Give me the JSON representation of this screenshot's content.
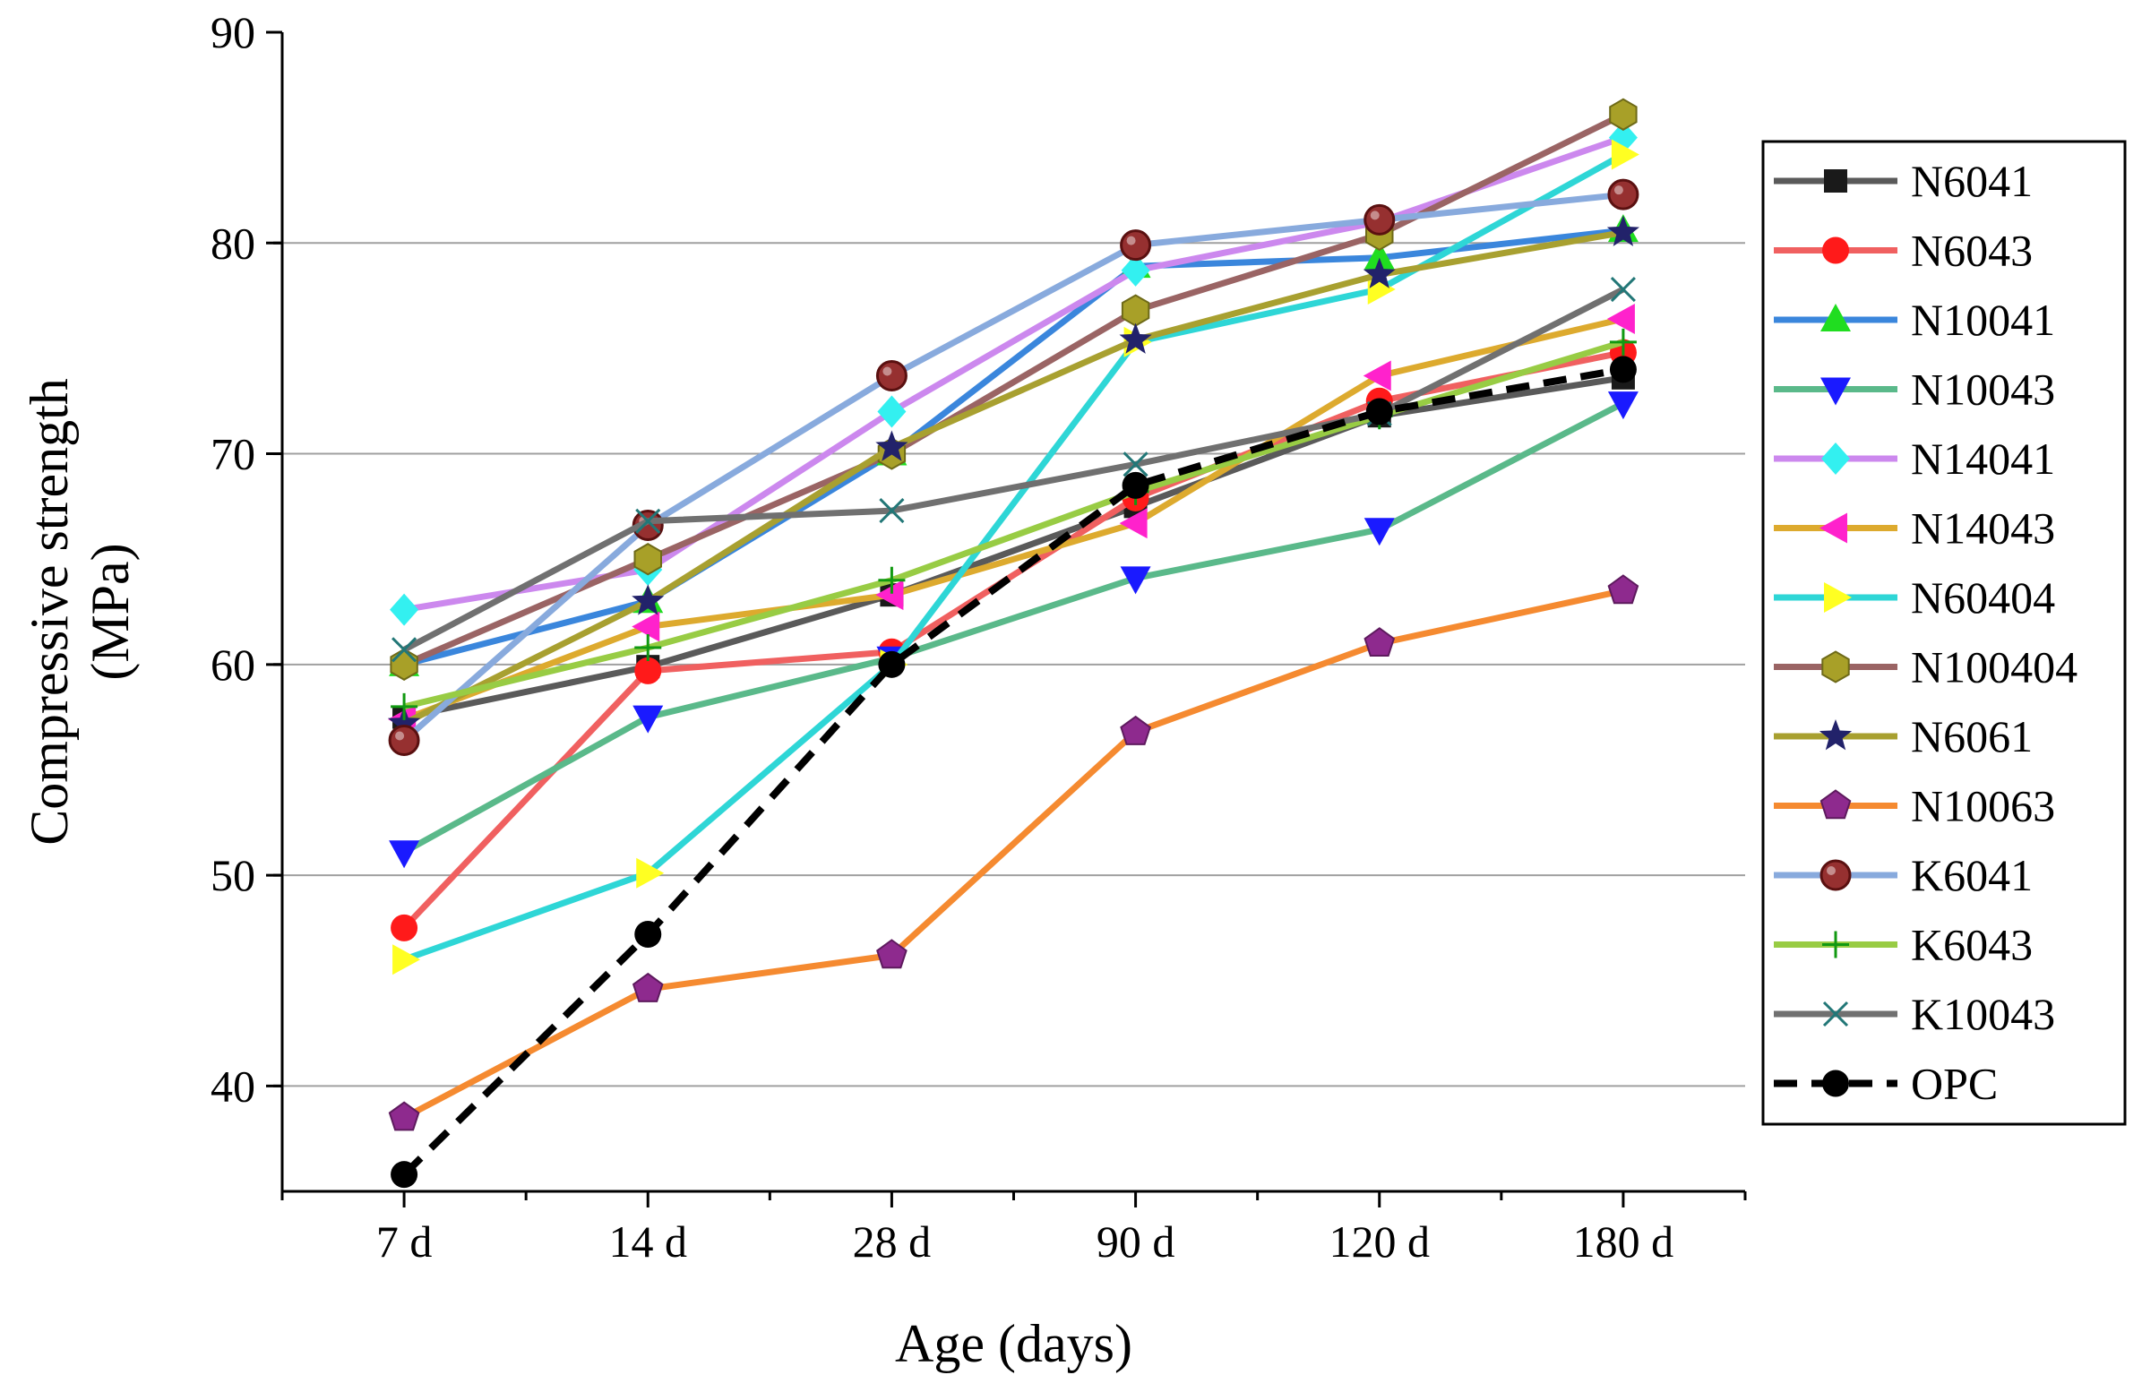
{
  "chart_data": {
    "type": "line",
    "xlabel": "Age (days)",
    "ylabel_lines": [
      "Compressive strength",
      "(MPa)"
    ],
    "categories": [
      "7 d",
      "14 d",
      "28 d",
      "90 d",
      "120 d",
      "180 d"
    ],
    "ylim": [
      35,
      90
    ],
    "yticks": [
      40,
      50,
      60,
      70,
      80,
      90
    ],
    "grid": true,
    "legend_position": "right",
    "series": [
      {
        "name": "N6041",
        "color": "#5a5a5a",
        "marker": "square",
        "marker_color": "#1a1a1a",
        "dashed": false,
        "values": [
          57.5,
          59.9,
          63.3,
          67.5,
          71.8,
          73.6
        ]
      },
      {
        "name": "N6043",
        "color": "#f06060",
        "marker": "circle",
        "marker_color": "#ff1a1a",
        "dashed": false,
        "values": [
          47.5,
          59.7,
          60.6,
          67.9,
          72.5,
          74.8
        ]
      },
      {
        "name": "N10041",
        "color": "#3a86dc",
        "marker": "triangle-up",
        "marker_color": "#20dd20",
        "dashed": false,
        "values": [
          60.0,
          63.0,
          70.0,
          78.9,
          79.3,
          80.6
        ]
      },
      {
        "name": "N10043",
        "color": "#5ab98a",
        "marker": "triangle-down",
        "marker_color": "#1a1aff",
        "dashed": false,
        "values": [
          51.1,
          57.5,
          60.3,
          64.1,
          66.4,
          72.4
        ]
      },
      {
        "name": "N14041",
        "color": "#cc88ee",
        "marker": "diamond",
        "marker_color": "#33f0f0",
        "dashed": false,
        "values": [
          62.6,
          64.5,
          72.0,
          78.7,
          81.0,
          85.0
        ]
      },
      {
        "name": "N14043",
        "color": "#ddaa2e",
        "marker": "triangle-left",
        "marker_color": "#ff22cc",
        "dashed": false,
        "values": [
          57.4,
          61.8,
          63.3,
          66.7,
          73.7,
          76.4
        ]
      },
      {
        "name": "N60404",
        "color": "#2ed6d6",
        "marker": "triangle-right",
        "marker_color": "#ffff22",
        "dashed": false,
        "values": [
          46.0,
          50.1,
          60.0,
          75.3,
          77.8,
          84.2
        ]
      },
      {
        "name": "N100404",
        "color": "#9a6464",
        "marker": "hexagon",
        "marker_color": "#a8a028",
        "dashed": false,
        "values": [
          60.0,
          65.0,
          70.0,
          76.8,
          80.4,
          86.1
        ]
      },
      {
        "name": "N6061",
        "color": "#a8a030",
        "marker": "star",
        "marker_color": "#22226a",
        "dashed": false,
        "values": [
          57.2,
          63.0,
          70.3,
          75.4,
          78.5,
          80.5
        ]
      },
      {
        "name": "N10063",
        "color": "#f58a30",
        "marker": "pentagon",
        "marker_color": "#8e2a8e",
        "dashed": false,
        "values": [
          38.5,
          44.6,
          46.2,
          56.8,
          61.0,
          63.5
        ]
      },
      {
        "name": "K6041",
        "color": "#88aadd",
        "marker": "sphere",
        "marker_color": "#963030",
        "dashed": false,
        "values": [
          56.4,
          66.6,
          73.7,
          79.9,
          81.1,
          82.3
        ]
      },
      {
        "name": "K6043",
        "color": "#98cc44",
        "marker": "plus",
        "marker_color": "#119911",
        "dashed": false,
        "values": [
          58.0,
          60.8,
          64.0,
          68.2,
          71.8,
          75.3
        ]
      },
      {
        "name": "K10043",
        "color": "#707070",
        "marker": "x",
        "marker_color": "#227777",
        "dashed": false,
        "values": [
          60.7,
          66.8,
          67.3,
          69.5,
          71.9,
          77.8
        ]
      },
      {
        "name": "OPC",
        "color": "#000000",
        "marker": "circle",
        "marker_color": "#000000",
        "dashed": true,
        "values": [
          35.8,
          47.2,
          60.0,
          68.5,
          72.0,
          74.0
        ]
      }
    ]
  }
}
